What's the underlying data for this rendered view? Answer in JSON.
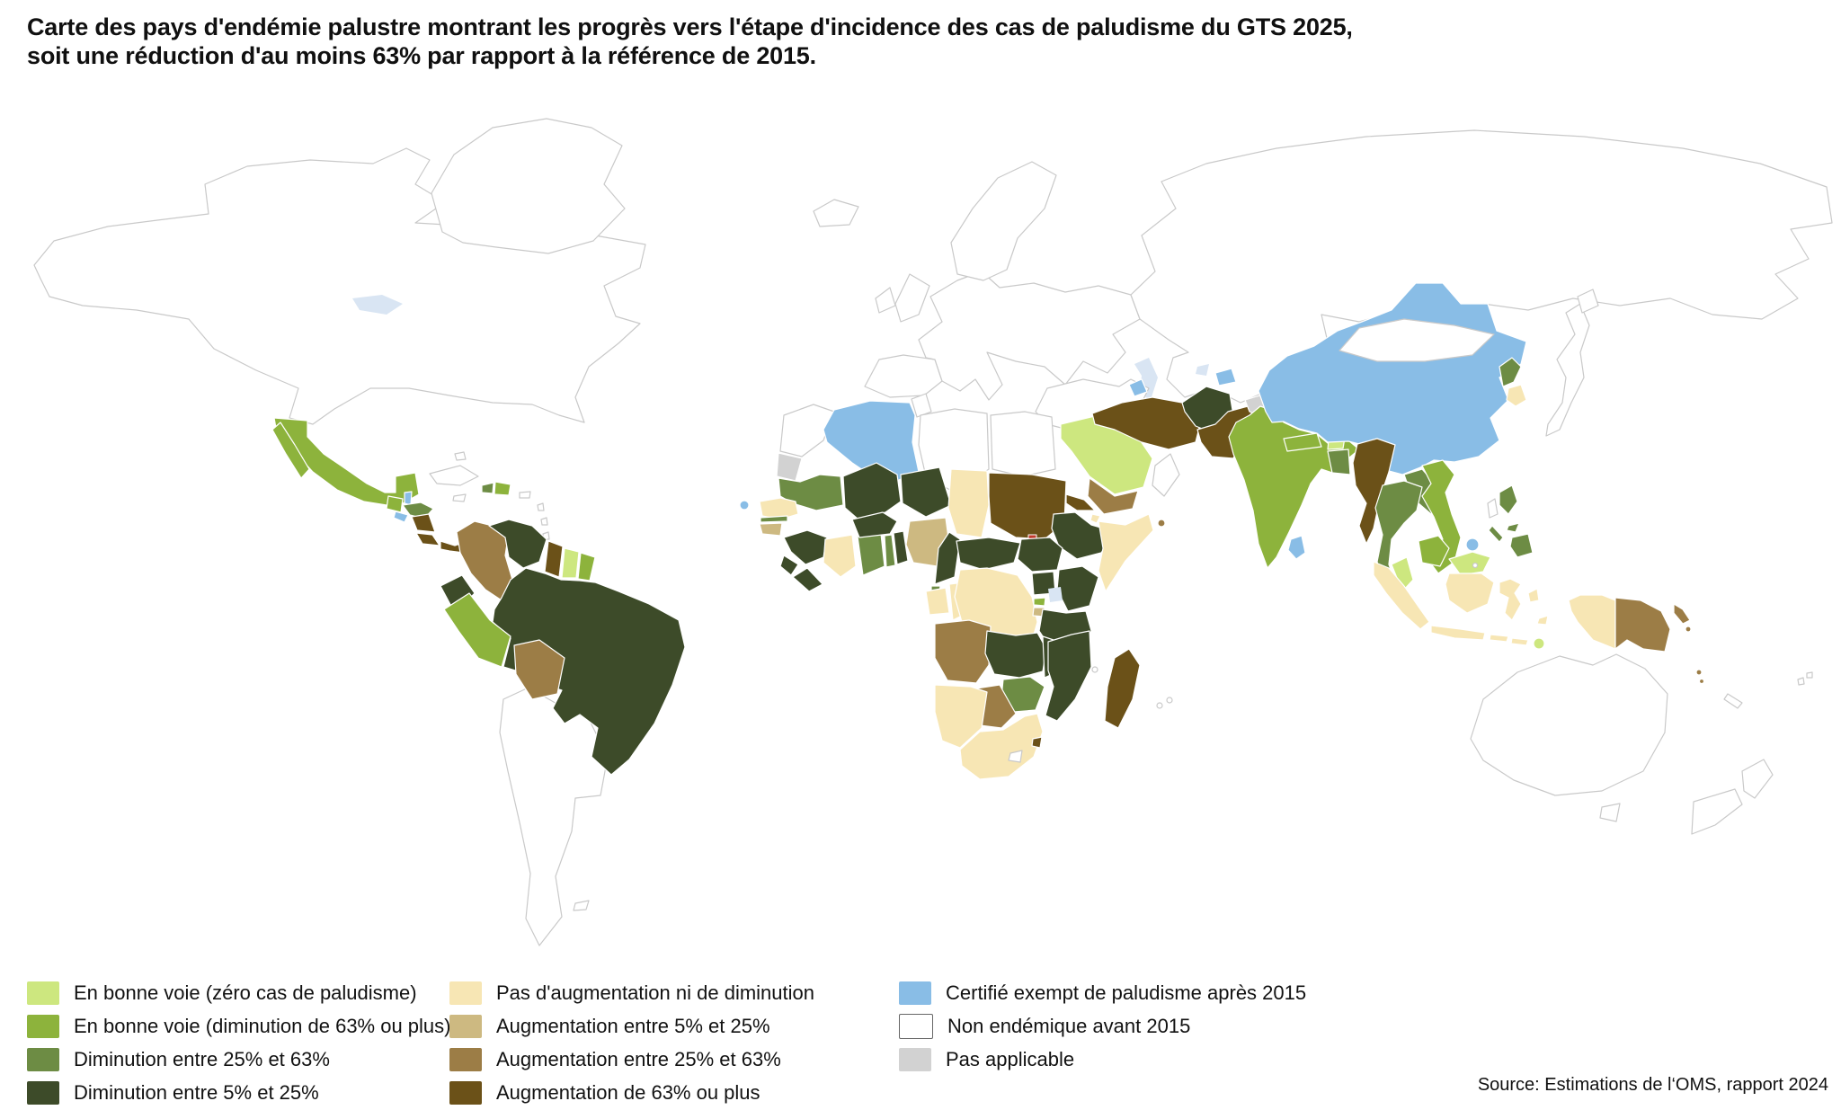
{
  "title": {
    "line1": "Carte des pays d'endémie palustre montrant les progrès vers l'étape d'incidence des cas de paludisme du GTS 2025,",
    "line2": "soit une réduction d'au moins 63% par rapport à la référence de 2015."
  },
  "source": "Source: Estimations de l‘OMS, rapport 2024",
  "categories": {
    "on_track_zero": {
      "color": "#cde77f",
      "label": "En bonne voie (zéro cas de paludisme)"
    },
    "on_track_63": {
      "color": "#8db33c",
      "label": "En bonne voie (diminution de 63% ou plus)"
    },
    "dec_25_63": {
      "color": "#6d8c44",
      "label": "Diminution entre 25% et 63%"
    },
    "dec_5_25": {
      "color": "#3d4b29",
      "label": "Diminution entre 5% et 25%"
    },
    "no_change": {
      "color": "#f7e6b4",
      "label": "Pas d'augmentation ni de diminution"
    },
    "inc_5_25": {
      "color": "#cdb981",
      "label": "Augmentation entre 5% et 25%"
    },
    "inc_25_63": {
      "color": "#9c7d46",
      "label": "Augmentation entre 25% et 63%"
    },
    "inc_63": {
      "color": "#6b5118",
      "label": "Augmentation de 63% ou plus"
    },
    "certified": {
      "color": "#89bde6",
      "label": "Certifié exempt de paludisme après 2015"
    },
    "non_endemic": {
      "color": "#ffffff",
      "label": "Non endémique avant 2015"
    },
    "not_applicable": {
      "color": "#d2d2d2",
      "label": "Pas applicable"
    }
  },
  "legend": {
    "columns": [
      [
        "on_track_zero",
        "on_track_63",
        "dec_25_63",
        "dec_5_25"
      ],
      [
        "no_change",
        "inc_5_25",
        "inc_25_63",
        "inc_63"
      ],
      [
        "certified",
        "non_endemic",
        "not_applicable"
      ]
    ]
  },
  "map": {
    "countries": {
      "north_america": "non_endemic",
      "greenland": "non_endemic",
      "iceland": "non_endemic",
      "europe": "non_endemic",
      "iberia": "non_endemic",
      "uk": "non_endemic",
      "ireland": "non_endemic",
      "scandinavia": "non_endemic",
      "russia_central_asia": "non_endemic",
      "turkey_levant_iraq": "non_endemic",
      "oman": "non_endemic",
      "mongolia": "non_endemic",
      "japan": "non_endemic",
      "hokkaido": "non_endemic",
      "taiwan": "non_endemic",
      "australia": "non_endemic",
      "tasmania": "non_endemic",
      "new_zealand_north": "non_endemic",
      "new_zealand_south": "non_endemic",
      "new_caledonia": "non_endemic",
      "fiji": "non_endemic",
      "southern_south_america": "non_endemic",
      "falklands": "non_endemic",
      "cuba": "non_endemic",
      "jamaica": "non_endemic",
      "puerto_rico": "non_endemic",
      "bahamas": "non_endemic",
      "lesser_antilles": "non_endemic",
      "morocco": "non_endemic",
      "tunisia": "non_endemic",
      "libya": "non_endemic",
      "egypt": "non_endemic",
      "lesotho": "non_endemic",
      "comoros": "non_endemic",
      "mauritius": "non_endemic",
      "reunion": "non_endemic",
      "brunei": "non_endemic",
      "singapore": "non_endemic",
      "mexico": "on_track_63",
      "belize": "certified",
      "guatemala": "on_track_63",
      "honduras": "dec_25_63",
      "el_salvador": "certified",
      "nicaragua": "inc_63",
      "costa_rica": "inc_63",
      "panama": "inc_63",
      "haiti": "dec_25_63",
      "dominican_republic": "on_track_63",
      "cabo_verde": "certified",
      "colombia": "inc_25_63",
      "venezuela": "dec_5_25",
      "guyana": "inc_63",
      "suriname": "on_track_zero",
      "french_guiana": "on_track_63",
      "ecuador": "dec_5_25",
      "peru": "on_track_63",
      "brazil": "dec_5_25",
      "bolivia": "inc_25_63",
      "algeria": "certified",
      "western_sahara": "not_applicable",
      "mauritania": "dec_25_63",
      "mali": "dec_5_25",
      "niger": "dec_5_25",
      "chad": "no_change",
      "sudan": "inc_63",
      "eritrea": "inc_63",
      "djibouti": "no_change",
      "ethiopia": "dec_5_25",
      "somalia": "no_change",
      "senegal": "no_change",
      "gambia": "dec_25_63",
      "guinea_bissau": "inc_5_25",
      "guinea": "dec_5_25",
      "sierra_leone": "dec_5_25",
      "liberia": "dec_5_25",
      "cote_divoire": "no_change",
      "ghana": "dec_25_63",
      "togo": "dec_25_63",
      "benin": "dec_5_25",
      "burkina_faso": "dec_5_25",
      "nigeria": "inc_5_25",
      "cameroon": "dec_5_25",
      "central_african_republic": "dec_5_25",
      "south_sudan": "dec_5_25",
      "uganda": "dec_5_25",
      "kenya": "dec_5_25",
      "equatorial_guinea": "dec_25_63",
      "gabon": "no_change",
      "congo": "no_change",
      "drc": "no_change",
      "rwanda": "on_track_63",
      "burundi": "inc_5_25",
      "tanzania": "dec_5_25",
      "angola": "inc_25_63",
      "zambia": "dec_5_25",
      "malawi": "dec_5_25",
      "mozambique": "dec_5_25",
      "zimbabwe": "dec_25_63",
      "botswana": "inc_25_63",
      "namibia": "no_change",
      "south_africa": "no_change",
      "eswatini": "inc_63",
      "madagascar": "inc_63",
      "saudi_arabia": "on_track_zero",
      "yemen": "inc_25_63",
      "socotra": "inc_25_63",
      "iran": "inc_63",
      "afghanistan": "dec_5_25",
      "pakistan": "inc_63",
      "kashmir": "not_applicable",
      "azerbaijan": "certified",
      "tajikistan": "certified",
      "india": "on_track_63",
      "nepal": "on_track_63",
      "bhutan": "on_track_zero",
      "bangladesh": "dec_25_63",
      "sri_lanka": "certified",
      "myanmar": "inc_63",
      "thailand": "dec_25_63",
      "laos": "dec_25_63",
      "vietnam": "on_track_63",
      "cambodia": "on_track_63",
      "china": "certified",
      "hainan": "certified",
      "north_korea": "dec_25_63",
      "south_korea": "no_change",
      "philippines_luzon": "dec_25_63",
      "philippines_visayas": "dec_25_63",
      "philippines_mindanao": "dec_25_63",
      "philippines_palawan": "dec_25_63",
      "malaysia_peninsula": "on_track_zero",
      "malaysia_borneo": "on_track_zero",
      "indonesia_sumatra": "no_change",
      "indonesia_java": "no_change",
      "indonesia_borneo": "no_change",
      "indonesia_sulawesi": "no_change",
      "indonesia_lesser_sunda_1": "no_change",
      "indonesia_lesser_sunda_2": "no_change",
      "indonesia_moluccas_1": "no_change",
      "indonesia_moluccas_2": "no_change",
      "indonesia_west_new_guinea": "no_change",
      "timor_leste": "on_track_zero",
      "papua_new_guinea": "inc_25_63",
      "png_islands": "inc_25_63",
      "solomon_islands": "inc_25_63",
      "vanuatu": "inc_25_63",
      "vanuatu_2": "inc_25_63"
    }
  }
}
